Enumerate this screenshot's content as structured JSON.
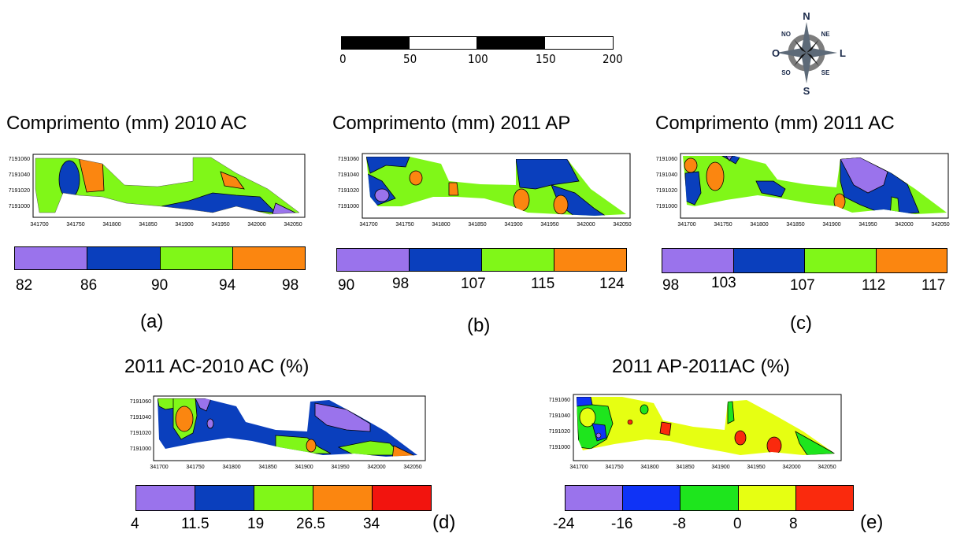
{
  "scalebar": {
    "labels": [
      "0",
      "50",
      "100",
      "150",
      "200"
    ]
  },
  "compass": {
    "n": "N",
    "s": "S",
    "l": "L",
    "o": "O",
    "ne": "NE",
    "no": "NO",
    "se": "SE",
    "so": "SO"
  },
  "axis": {
    "x_ticks": [
      "341700",
      "341750",
      "341800",
      "341850",
      "341900",
      "341950",
      "342000",
      "342050"
    ],
    "y_ticks": [
      "7191060",
      "7191040",
      "7191020",
      "7191000"
    ]
  },
  "colors": {
    "purple": "#9a73ec",
    "blue": "#0a3fbd",
    "green": "#80f718",
    "orange": "#fb8610",
    "red": "#f2140e",
    "blue2": "#0f33f6",
    "green2": "#1ee51d",
    "yellow": "#e6ff12",
    "red2": "#fa2a0d"
  },
  "panels": [
    {
      "id": "a",
      "title": "Comprimento (mm) 2010 AC",
      "letter": "(a)",
      "legend_ticks": [
        "82",
        "86",
        "90",
        "94",
        "98"
      ]
    },
    {
      "id": "b",
      "title": "Comprimento (mm) 2011 AP",
      "letter": "(b)",
      "legend_ticks": [
        "90",
        "98",
        "107",
        "115",
        "124"
      ]
    },
    {
      "id": "c",
      "title": "Comprimento (mm) 2011 AC",
      "letter": "(c)",
      "legend_ticks": [
        "98",
        "103",
        "107",
        "112",
        "117"
      ]
    },
    {
      "id": "d",
      "title": "2011 AC-2010 AC (%)",
      "letter": "(d)",
      "legend_ticks": [
        "4",
        "11.5",
        "19",
        "26.5",
        "34"
      ]
    },
    {
      "id": "e",
      "title": "2011 AP-2011AC (%)",
      "letter": "(e)",
      "legend_ticks": [
        "-24",
        "-16",
        "-8",
        "0",
        "8"
      ]
    }
  ]
}
